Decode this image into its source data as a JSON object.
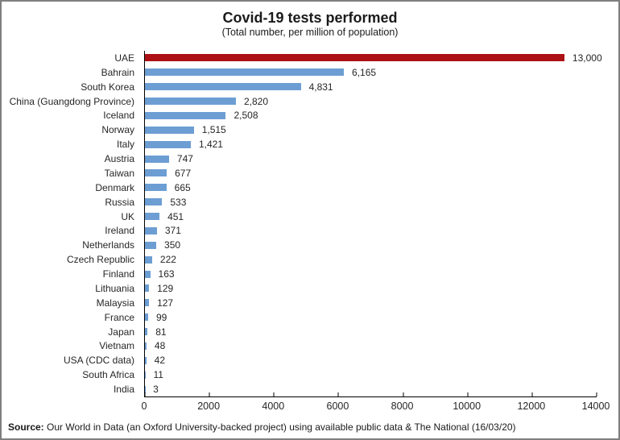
{
  "chart_data": {
    "type": "bar",
    "orientation": "horizontal",
    "title": "Covid-19 tests performed",
    "subtitle": "(Total number, per million of population)",
    "categories": [
      "UAE",
      "Bahrain",
      "South Korea",
      "China (Guangdong Province)",
      "Iceland",
      "Norway",
      "Italy",
      "Austria",
      "Taiwan",
      "Denmark",
      "Russia",
      "UK",
      "Ireland",
      "Netherlands",
      "Czech Republic",
      "Finland",
      "Lithuania",
      "Malaysia",
      "France",
      "Japan",
      "Vietnam",
      "USA (CDC data)",
      "South Africa",
      "India"
    ],
    "values": [
      13000,
      6165,
      4831,
      2820,
      2508,
      1515,
      1421,
      747,
      677,
      665,
      533,
      451,
      371,
      350,
      222,
      163,
      129,
      127,
      99,
      81,
      48,
      42,
      11,
      3
    ],
    "value_labels": [
      "13,000",
      "6,165",
      "4,831",
      "2,820",
      "2,508",
      "1,515",
      "1,421",
      "747",
      "677",
      "665",
      "533",
      "451",
      "371",
      "350",
      "222",
      "163",
      "129",
      "127",
      "99",
      "81",
      "48",
      "42",
      "11",
      "3"
    ],
    "x_ticks": [
      "0",
      "2000",
      "4000",
      "6000",
      "8000",
      "10000",
      "12000",
      "14000"
    ],
    "xlim": [
      0,
      14000
    ],
    "highlight_index": 0,
    "highlight_color": "#AC1115",
    "bar_color": "#6D9ED3",
    "grid": "off",
    "legend": "none"
  },
  "footer": {
    "source_label": "Source:",
    "source_text": " Our World in Data (an Oxford University-backed project) using available public data & The National  (16/03/20)"
  }
}
